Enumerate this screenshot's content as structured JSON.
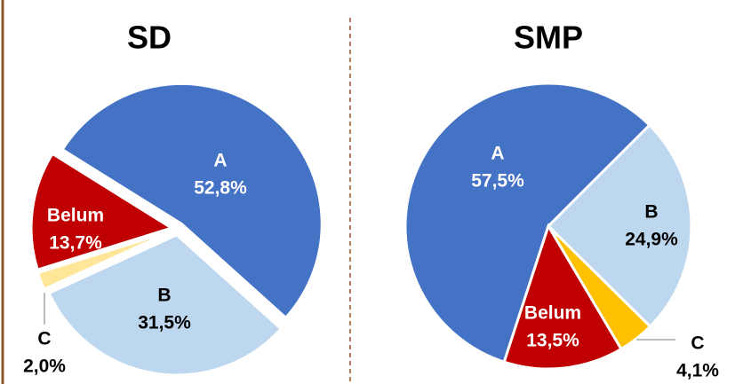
{
  "chart_data": [
    {
      "type": "pie",
      "title": "SD",
      "categories": [
        "A",
        "B",
        "C",
        "Belum"
      ],
      "values": [
        52.8,
        31.5,
        2.0,
        13.7
      ],
      "value_labels": [
        "52,8%",
        "31,5%",
        "2,0%",
        "13,7%"
      ],
      "colors": [
        "#4472c4",
        "#bdd7ee",
        "#ffe699",
        "#c00000"
      ]
    },
    {
      "type": "pie",
      "title": "SMP",
      "categories": [
        "A",
        "B",
        "C",
        "Belum"
      ],
      "values": [
        57.5,
        24.9,
        4.1,
        13.5
      ],
      "value_labels": [
        "57,5%",
        "24,9%",
        "4,1%",
        "13,5%"
      ],
      "colors": [
        "#4472c4",
        "#bdd7ee",
        "#ffc000",
        "#c00000"
      ]
    }
  ]
}
